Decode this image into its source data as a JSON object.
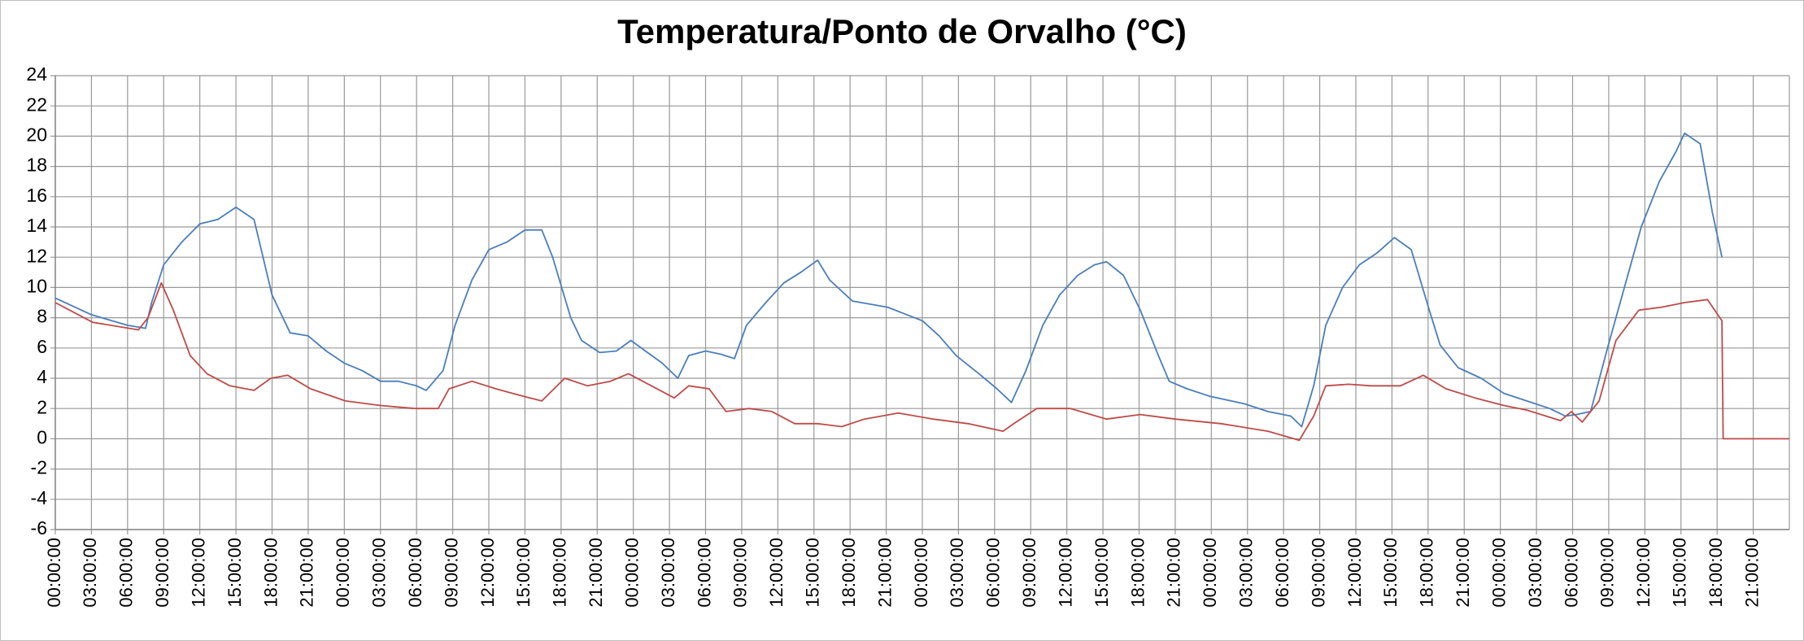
{
  "chart_data": {
    "type": "line",
    "title": "Temperatura/Ponto de Orvalho (°C)",
    "xlim": [
      0,
      144
    ],
    "ylim": [
      -6,
      24
    ],
    "yticks": [
      -6,
      -4,
      -2,
      0,
      2,
      4,
      6,
      8,
      10,
      12,
      14,
      16,
      18,
      20,
      22,
      24
    ],
    "xticks": [
      {
        "value": 0,
        "label": "00:00:00"
      },
      {
        "value": 3,
        "label": "03:00:00"
      },
      {
        "value": 6,
        "label": "06:00:00"
      },
      {
        "value": 9,
        "label": "09:00:00"
      },
      {
        "value": 12,
        "label": "12:00:00"
      },
      {
        "value": 15,
        "label": "15:00:00"
      },
      {
        "value": 18,
        "label": "18:00:00"
      },
      {
        "value": 21,
        "label": "21:00:00"
      },
      {
        "value": 24,
        "label": "00:00:00"
      },
      {
        "value": 27,
        "label": "03:00:00"
      },
      {
        "value": 30,
        "label": "06:00:00"
      },
      {
        "value": 33,
        "label": "09:00:00"
      },
      {
        "value": 36,
        "label": "12:00:00"
      },
      {
        "value": 39,
        "label": "15:00:00"
      },
      {
        "value": 42,
        "label": "18:00:00"
      },
      {
        "value": 45,
        "label": "21:00:00"
      },
      {
        "value": 48,
        "label": "00:00:00"
      },
      {
        "value": 51,
        "label": "03:00:00"
      },
      {
        "value": 54,
        "label": "06:00:00"
      },
      {
        "value": 57,
        "label": "09:00:00"
      },
      {
        "value": 60,
        "label": "12:00:00"
      },
      {
        "value": 63,
        "label": "15:00:00"
      },
      {
        "value": 66,
        "label": "18:00:00"
      },
      {
        "value": 69,
        "label": "21:00:00"
      },
      {
        "value": 72,
        "label": "00:00:00"
      },
      {
        "value": 75,
        "label": "03:00:00"
      },
      {
        "value": 78,
        "label": "06:00:00"
      },
      {
        "value": 81,
        "label": "09:00:00"
      },
      {
        "value": 84,
        "label": "12:00:00"
      },
      {
        "value": 87,
        "label": "15:00:00"
      },
      {
        "value": 90,
        "label": "18:00:00"
      },
      {
        "value": 93,
        "label": "21:00:00"
      },
      {
        "value": 96,
        "label": "00:00:00"
      },
      {
        "value": 99,
        "label": "03:00:00"
      },
      {
        "value": 102,
        "label": "06:00:00"
      },
      {
        "value": 105,
        "label": "09:00:00"
      },
      {
        "value": 108,
        "label": "12:00:00"
      },
      {
        "value": 111,
        "label": "15:00:00"
      },
      {
        "value": 114,
        "label": "18:00:00"
      },
      {
        "value": 117,
        "label": "21:00:00"
      },
      {
        "value": 120,
        "label": "00:00:00"
      },
      {
        "value": 123,
        "label": "03:00:00"
      },
      {
        "value": 126,
        "label": "06:00:00"
      },
      {
        "value": 129,
        "label": "09:00:00"
      },
      {
        "value": 132,
        "label": "12:00:00"
      },
      {
        "value": 135,
        "label": "15:00:00"
      },
      {
        "value": 138,
        "label": "18:00:00"
      },
      {
        "value": 141,
        "label": "21:00:00"
      }
    ],
    "grid": true,
    "series": [
      {
        "color": "#4a7ebb",
        "x": [
          0,
          3,
          6,
          7.5,
          8,
          9,
          10.5,
          12,
          13.5,
          15,
          16.5,
          18,
          19.5,
          21,
          22.5,
          24,
          25.5,
          27,
          28.5,
          30,
          30.8,
          32.2,
          33.2,
          34.6,
          36,
          37.5,
          39,
          40.4,
          41.3,
          42.8,
          43.7,
          45.2,
          46.6,
          47.8,
          49,
          50.4,
          51.7,
          52.6,
          54,
          55.2,
          56.4,
          57.4,
          59,
          60.5,
          61.9,
          63.3,
          64.3,
          66.2,
          69.1,
          72,
          73.4,
          74.8,
          76.7,
          78.2,
          79.4,
          80.6,
          82,
          83.4,
          84.9,
          86.3,
          87.3,
          88.7,
          90.1,
          91.6,
          92.5,
          94,
          95.9,
          98.8,
          100.7,
          102.6,
          103.5,
          104.5,
          105.5,
          106.9,
          108.3,
          109.8,
          111.2,
          112.6,
          114.1,
          115,
          116.5,
          118.4,
          120.3,
          122.2,
          124.1,
          125.4,
          126.3,
          127.5,
          128.9,
          130.3,
          131.7,
          133.2,
          134.6,
          135.3,
          136.6,
          137.6,
          138.4
        ],
        "values": [
          9.3,
          8.2,
          7.5,
          7.3,
          9,
          11.5,
          13,
          14.2,
          14.5,
          15.3,
          14.5,
          9.5,
          7,
          6.8,
          5.8,
          5,
          4.5,
          3.8,
          3.8,
          3.5,
          3.2,
          4.5,
          7.5,
          10.5,
          12.5,
          13,
          13.8,
          13.8,
          12,
          8,
          6.5,
          5.7,
          5.8,
          6.5,
          5.8,
          5,
          4,
          5.5,
          5.8,
          5.6,
          5.3,
          7.5,
          9,
          10.3,
          11,
          11.8,
          10.5,
          9.1,
          8.7,
          7.8,
          6.8,
          5.5,
          4.3,
          3.3,
          2.4,
          4.5,
          7.5,
          9.5,
          10.8,
          11.5,
          11.7,
          10.8,
          8.5,
          5.5,
          3.8,
          3.3,
          2.8,
          2.3,
          1.8,
          1.5,
          0.8,
          3.5,
          7.5,
          10,
          11.5,
          12.3,
          13.3,
          12.5,
          8.5,
          6.2,
          4.7,
          4,
          3,
          2.5,
          2,
          1.5,
          1.6,
          1.8,
          6,
          10,
          14,
          17,
          19,
          20.2,
          19.5,
          15,
          12
        ]
      },
      {
        "color": "#be4b48",
        "x": [
          0,
          3.1,
          6.9,
          7.7,
          8.8,
          9.8,
          11.2,
          12.6,
          14.5,
          16.5,
          17.9,
          19.3,
          21.2,
          24.1,
          27,
          29.9,
          31.8,
          32.7,
          34.6,
          36.6,
          38.9,
          40.4,
          42.3,
          44.2,
          46.1,
          47.6,
          49.5,
          51.4,
          52.6,
          54.3,
          55.7,
          57.6,
          59.5,
          61.4,
          63.3,
          65.3,
          67.2,
          70,
          72.9,
          75.8,
          78.7,
          79.6,
          81.5,
          84.3,
          87.3,
          90.1,
          93,
          96.8,
          100.7,
          103.3,
          104.5,
          105.5,
          107.4,
          109.3,
          111.7,
          113.6,
          115.5,
          117.9,
          120.3,
          122.2,
          125,
          125.9,
          126.8,
          128.2,
          129.6,
          131.5,
          133.4,
          135.3,
          137.2,
          138.4,
          138.5,
          144
        ],
        "values": [
          9,
          7.7,
          7.2,
          8,
          10.3,
          8.5,
          5.5,
          4.3,
          3.5,
          3.2,
          4,
          4.2,
          3.3,
          2.5,
          2.2,
          2,
          2,
          3.3,
          3.8,
          3.3,
          2.8,
          2.5,
          4,
          3.5,
          3.8,
          4.3,
          3.5,
          2.7,
          3.5,
          3.3,
          1.8,
          2,
          1.8,
          1,
          1,
          0.8,
          1.3,
          1.7,
          1.3,
          1,
          0.5,
          1,
          2,
          2,
          1.3,
          1.6,
          1.3,
          1,
          0.5,
          -0.1,
          1.5,
          3.5,
          3.6,
          3.5,
          3.5,
          4.2,
          3.3,
          2.7,
          2.2,
          1.9,
          1.2,
          1.8,
          1.1,
          2.5,
          6.5,
          8.5,
          8.7,
          9,
          9.2,
          7.8,
          0,
          0
        ]
      }
    ]
  }
}
